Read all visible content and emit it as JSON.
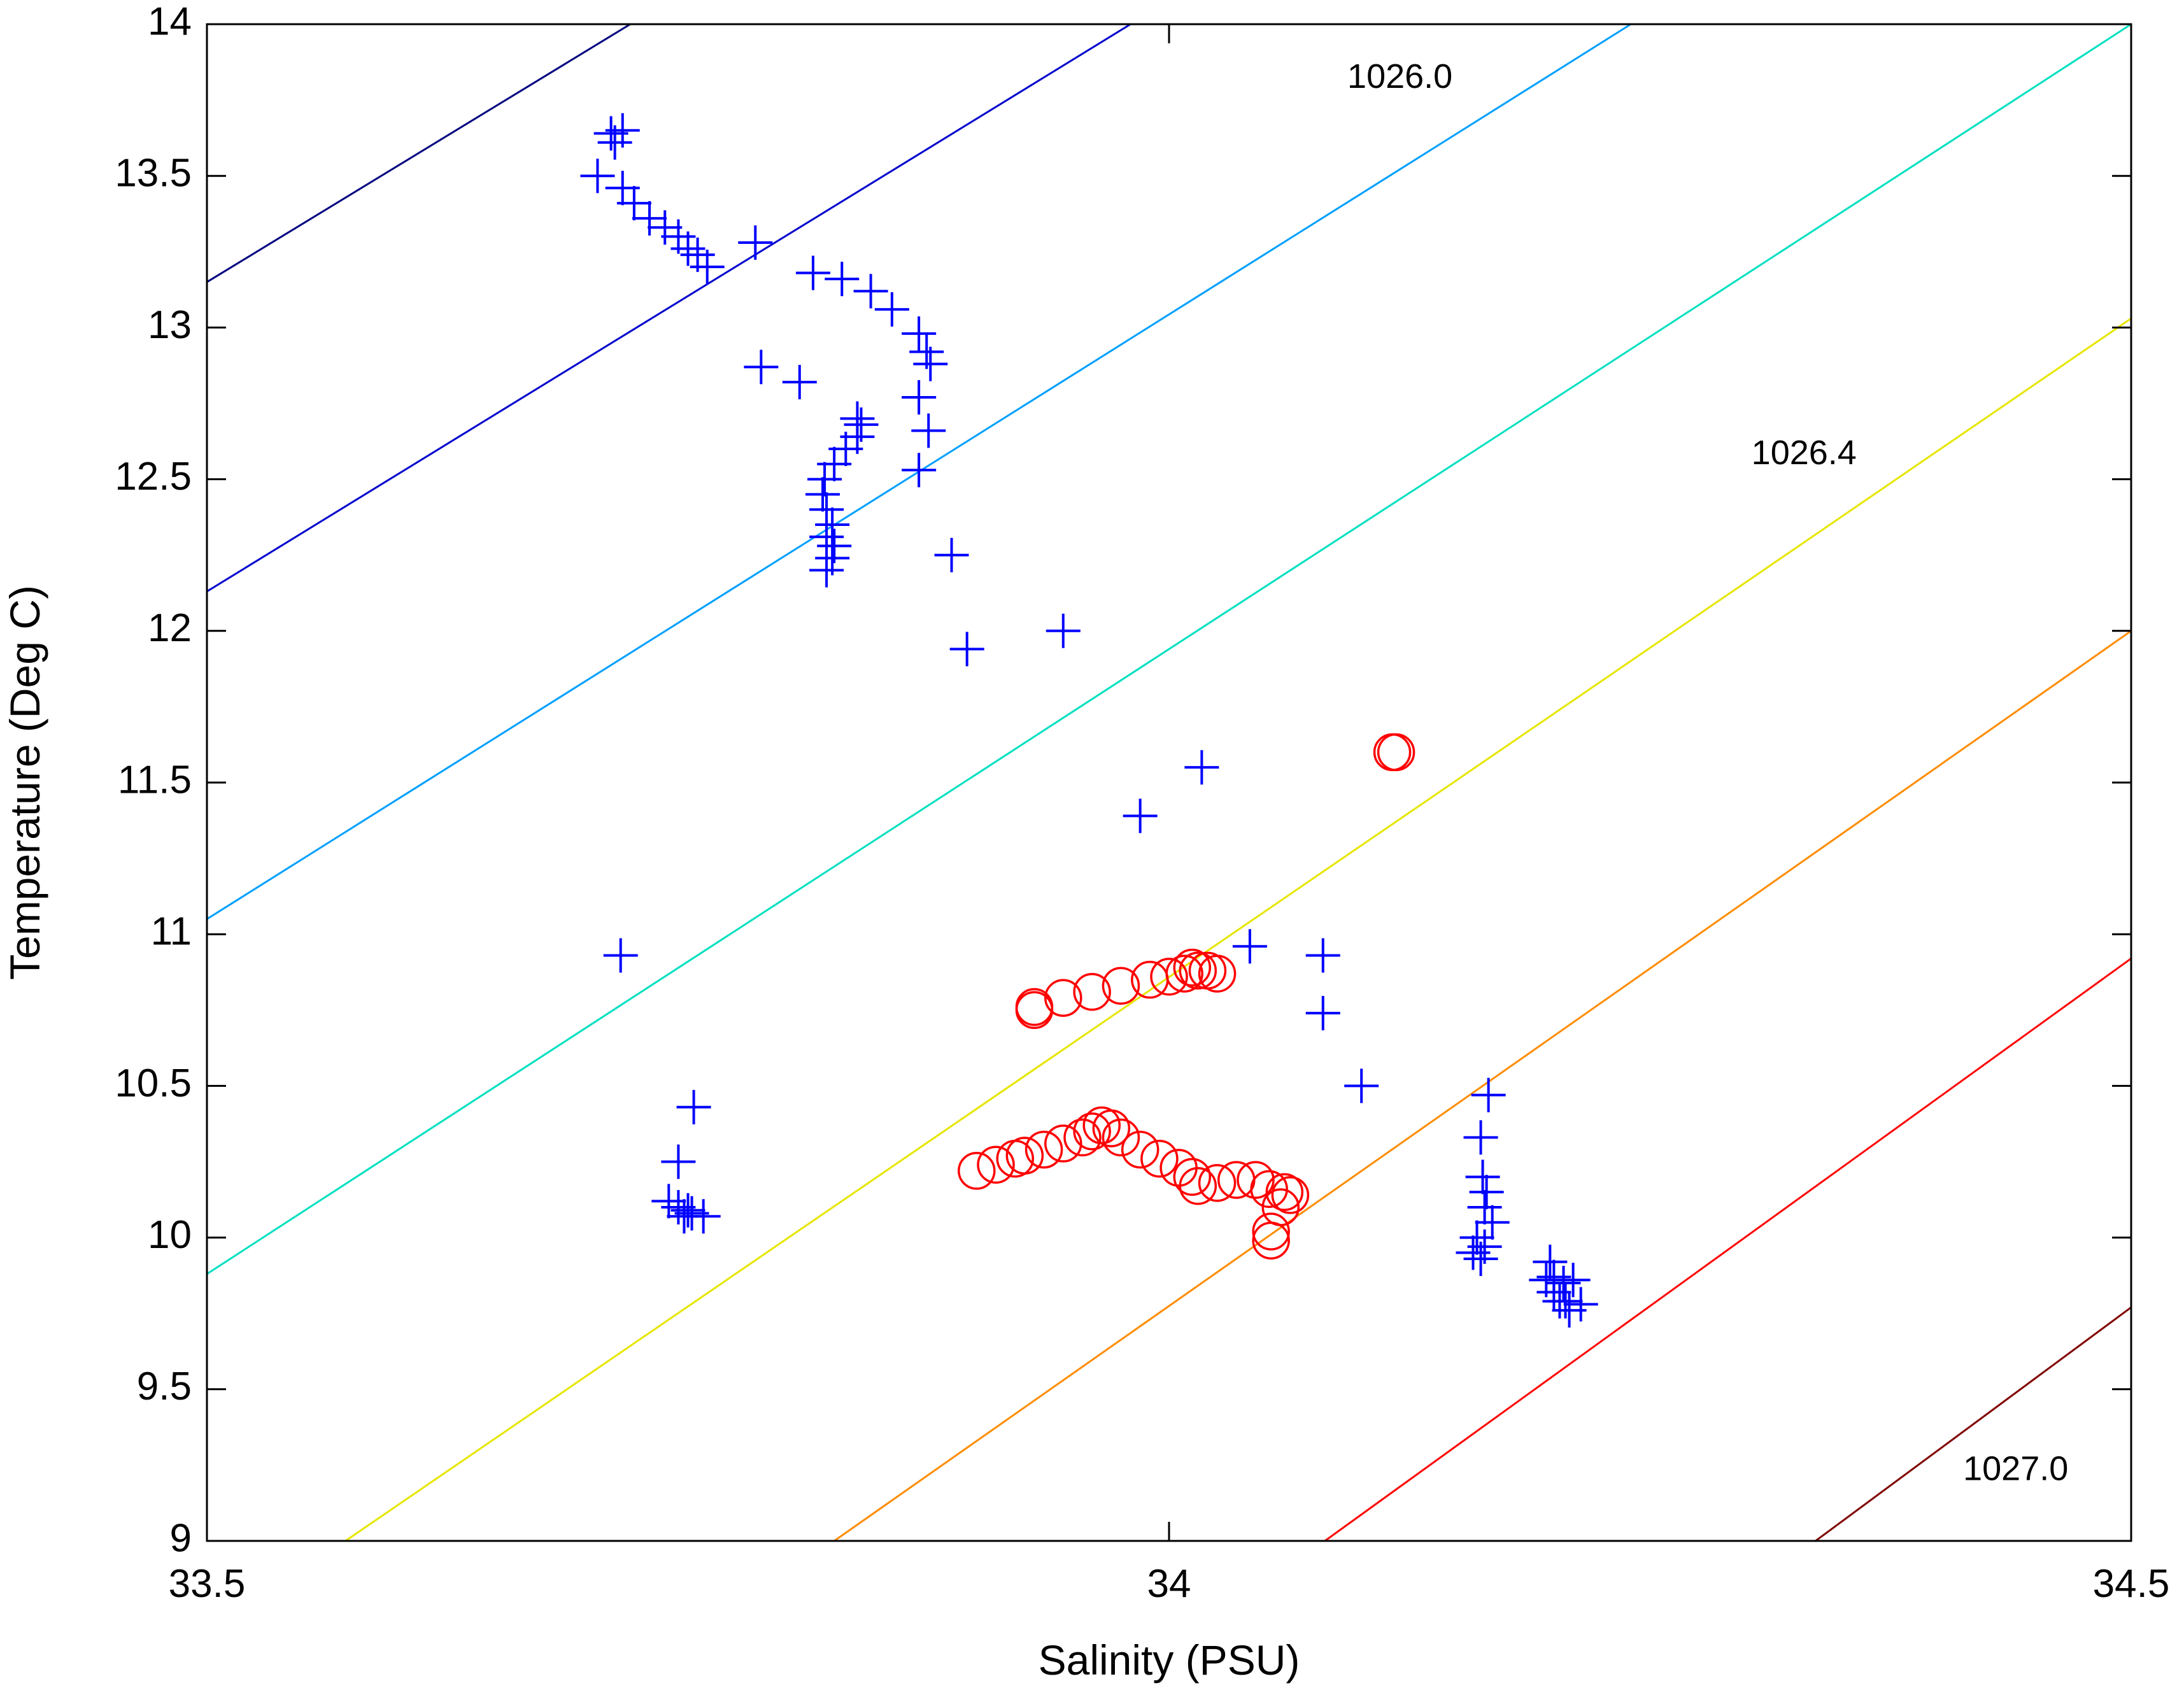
{
  "chart_data": {
    "type": "scatter",
    "xlabel": "Salinity (PSU)",
    "ylabel": "Temperature (Deg C)",
    "xlim": [
      33.5,
      34.5
    ],
    "ylim": [
      9,
      14
    ],
    "xticks": [
      33.5,
      34,
      34.5
    ],
    "xtick_labels": [
      "33.5",
      "34",
      "34.5"
    ],
    "yticks": [
      9,
      9.5,
      10,
      10.5,
      11,
      11.5,
      12,
      12.5,
      13,
      13.5,
      14
    ],
    "ytick_labels": [
      "9",
      "9.5",
      "10",
      "10.5",
      "11",
      "11.5",
      "12",
      "12.5",
      "13",
      "13.5",
      "14"
    ],
    "grid": false,
    "density_contours": [
      {
        "color": "#000080",
        "points": [
          [
            33.5,
            13.15
          ],
          [
            33.72,
            14.0
          ]
        ]
      },
      {
        "color": "#0000CD",
        "points": [
          [
            33.5,
            12.13
          ],
          [
            33.98,
            14.0
          ]
        ]
      },
      {
        "color": "#00A0FF",
        "points": [
          [
            33.5,
            11.05
          ],
          [
            34.24,
            14.0
          ]
        ]
      },
      {
        "color": "#00E0C0",
        "points": [
          [
            33.5,
            9.88
          ],
          [
            34.5,
            14.0
          ]
        ]
      },
      {
        "color": "#E6E600",
        "points": [
          [
            33.572,
            9.0
          ],
          [
            34.5,
            13.03
          ]
        ]
      },
      {
        "color": "#FF8C00",
        "points": [
          [
            33.826,
            9.0
          ],
          [
            34.5,
            12.0
          ]
        ]
      },
      {
        "color": "#FF0000",
        "points": [
          [
            34.081,
            9.0
          ],
          [
            34.5,
            10.92
          ]
        ]
      },
      {
        "color": "#800000",
        "points": [
          [
            34.336,
            9.0
          ],
          [
            34.5,
            9.77
          ]
        ]
      }
    ],
    "contour_labels": [
      {
        "text": "1026.0",
        "x": 34.12,
        "y": 13.82
      },
      {
        "text": "1026.4",
        "x": 34.33,
        "y": 12.58
      },
      {
        "text": "1027.0",
        "x": 34.44,
        "y": 9.23
      }
    ],
    "series": [
      {
        "marker": "plus",
        "color": "#0000FF",
        "points": [
          [
            33.71,
            13.64
          ],
          [
            33.716,
            13.65
          ],
          [
            33.712,
            13.61
          ],
          [
            33.703,
            13.5
          ],
          [
            33.716,
            13.46
          ],
          [
            33.722,
            13.41
          ],
          [
            33.73,
            13.36
          ],
          [
            33.738,
            13.33
          ],
          [
            33.745,
            13.3
          ],
          [
            33.75,
            13.26
          ],
          [
            33.755,
            13.24
          ],
          [
            33.76,
            13.2
          ],
          [
            33.785,
            13.28
          ],
          [
            33.815,
            13.18
          ],
          [
            33.83,
            13.16
          ],
          [
            33.845,
            13.12
          ],
          [
            33.856,
            13.06
          ],
          [
            33.87,
            12.98
          ],
          [
            33.874,
            12.92
          ],
          [
            33.876,
            12.88
          ],
          [
            33.87,
            12.77
          ],
          [
            33.875,
            12.66
          ],
          [
            33.87,
            12.53
          ],
          [
            33.788,
            12.87
          ],
          [
            33.808,
            12.82
          ],
          [
            33.838,
            12.7
          ],
          [
            33.84,
            12.68
          ],
          [
            33.838,
            12.64
          ],
          [
            33.832,
            12.6
          ],
          [
            33.826,
            12.55
          ],
          [
            33.821,
            12.5
          ],
          [
            33.82,
            12.45
          ],
          [
            33.822,
            12.4
          ],
          [
            33.825,
            12.35
          ],
          [
            33.822,
            12.31
          ],
          [
            33.826,
            12.28
          ],
          [
            33.825,
            12.24
          ],
          [
            33.822,
            12.2
          ],
          [
            33.887,
            12.25
          ],
          [
            33.895,
            11.94
          ],
          [
            33.945,
            12.0
          ],
          [
            33.985,
            11.39
          ],
          [
            34.017,
            11.55
          ],
          [
            34.042,
            10.96
          ],
          [
            34.08,
            10.93
          ],
          [
            34.08,
            10.74
          ],
          [
            34.1,
            10.5
          ],
          [
            33.715,
            10.93
          ],
          [
            33.753,
            10.43
          ],
          [
            33.745,
            10.25
          ],
          [
            33.74,
            10.12
          ],
          [
            33.745,
            10.1
          ],
          [
            33.75,
            10.09
          ],
          [
            33.752,
            10.08
          ],
          [
            33.758,
            10.07
          ],
          [
            33.748,
            10.07
          ],
          [
            34.166,
            10.47
          ],
          [
            34.162,
            10.33
          ],
          [
            34.163,
            10.2
          ],
          [
            34.165,
            10.15
          ],
          [
            34.164,
            10.1
          ],
          [
            34.168,
            10.05
          ],
          [
            34.16,
            10.0
          ],
          [
            34.164,
            9.97
          ],
          [
            34.158,
            9.95
          ],
          [
            34.162,
            9.93
          ],
          [
            34.198,
            9.92
          ],
          [
            34.196,
            9.86
          ],
          [
            34.2,
            9.82
          ],
          [
            34.203,
            9.79
          ],
          [
            34.2,
            9.87
          ],
          [
            34.205,
            9.85
          ],
          [
            34.21,
            9.86
          ],
          [
            34.206,
            9.79
          ],
          [
            34.208,
            9.76
          ],
          [
            34.214,
            9.78
          ]
        ]
      },
      {
        "marker": "circle",
        "color": "#FF0000",
        "points": [
          [
            34.116,
            11.6
          ],
          [
            34.118,
            11.6
          ],
          [
            33.93,
            10.75
          ],
          [
            33.93,
            10.76
          ],
          [
            33.945,
            10.79
          ],
          [
            33.96,
            10.81
          ],
          [
            33.975,
            10.83
          ],
          [
            33.99,
            10.85
          ],
          [
            34.0,
            10.86
          ],
          [
            34.008,
            10.87
          ],
          [
            34.012,
            10.89
          ],
          [
            34.015,
            10.88
          ],
          [
            34.02,
            10.88
          ],
          [
            34.025,
            10.87
          ],
          [
            33.9,
            10.22
          ],
          [
            33.91,
            10.24
          ],
          [
            33.92,
            10.26
          ],
          [
            33.925,
            10.27
          ],
          [
            33.935,
            10.29
          ],
          [
            33.945,
            10.31
          ],
          [
            33.955,
            10.33
          ],
          [
            33.96,
            10.35
          ],
          [
            33.965,
            10.37
          ],
          [
            33.97,
            10.36
          ],
          [
            33.975,
            10.33
          ],
          [
            33.985,
            10.29
          ],
          [
            33.995,
            10.26
          ],
          [
            34.005,
            10.23
          ],
          [
            34.012,
            10.2
          ],
          [
            34.015,
            10.17
          ],
          [
            34.025,
            10.18
          ],
          [
            34.035,
            10.19
          ],
          [
            34.045,
            10.19
          ],
          [
            34.052,
            10.16
          ],
          [
            34.06,
            10.15
          ],
          [
            34.063,
            10.14
          ],
          [
            34.058,
            10.1
          ],
          [
            34.053,
            10.02
          ],
          [
            34.053,
            9.99
          ]
        ]
      }
    ]
  }
}
